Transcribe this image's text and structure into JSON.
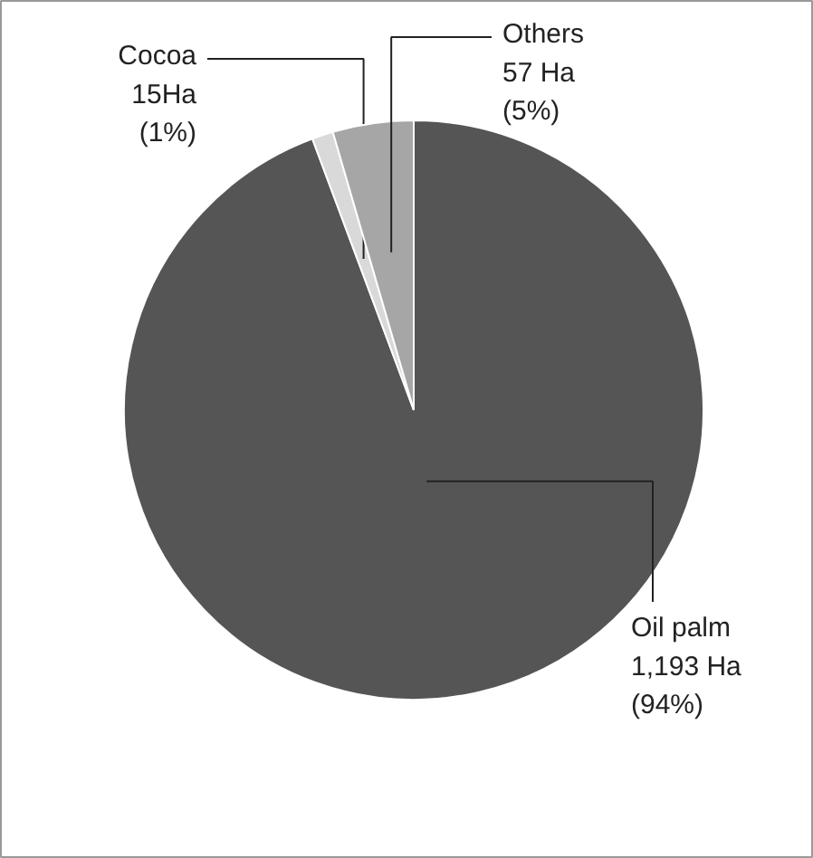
{
  "chart_data": {
    "type": "pie",
    "categories": [
      "Oil palm",
      "Cocoa",
      "Others"
    ],
    "values": [
      1193,
      15,
      57
    ],
    "value_labels": [
      "1,193 Ha\n(94%)",
      "15Ha\n(1%)",
      "57 Ha\n(5%)"
    ],
    "colors": [
      "#555555",
      "#d9d9d9",
      "#a6a6a6"
    ]
  }
}
